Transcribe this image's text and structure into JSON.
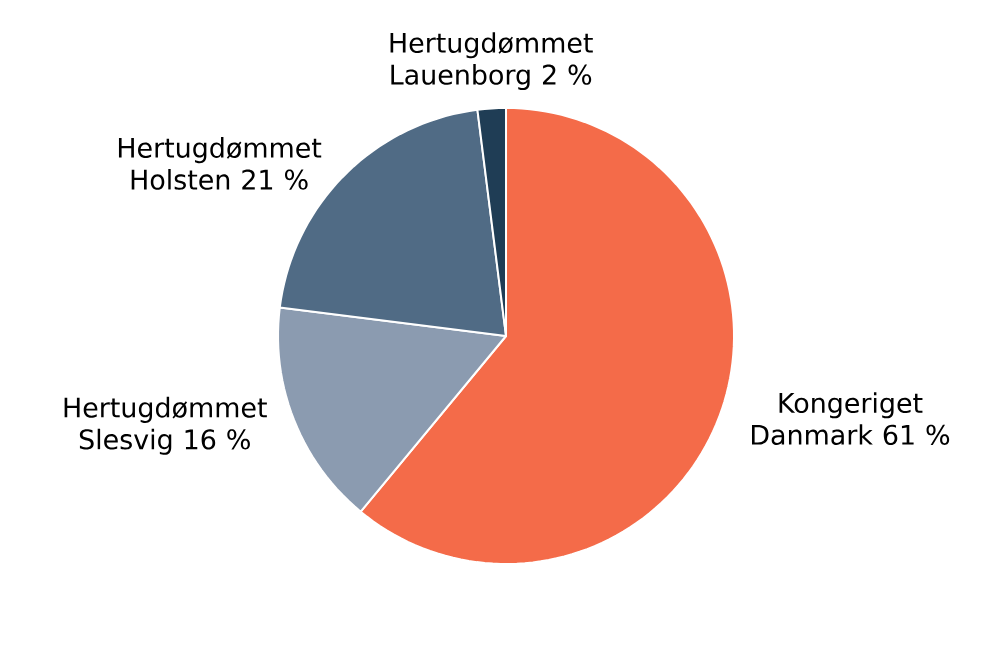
{
  "chart_data": {
    "type": "pie",
    "categories": [
      "Kongeriget Danmark",
      "Hertugdømmet Slesvig",
      "Hertugdømmet Holsten",
      "Hertugdømmet Lauenborg"
    ],
    "values": [
      61,
      16,
      21,
      2
    ],
    "value_labels": [
      "61 %",
      "16 %",
      "21 %",
      "2 %"
    ],
    "colors": [
      "#f46b49",
      "#8b9bb0",
      "#506b85",
      "#1f3d55"
    ]
  }
}
